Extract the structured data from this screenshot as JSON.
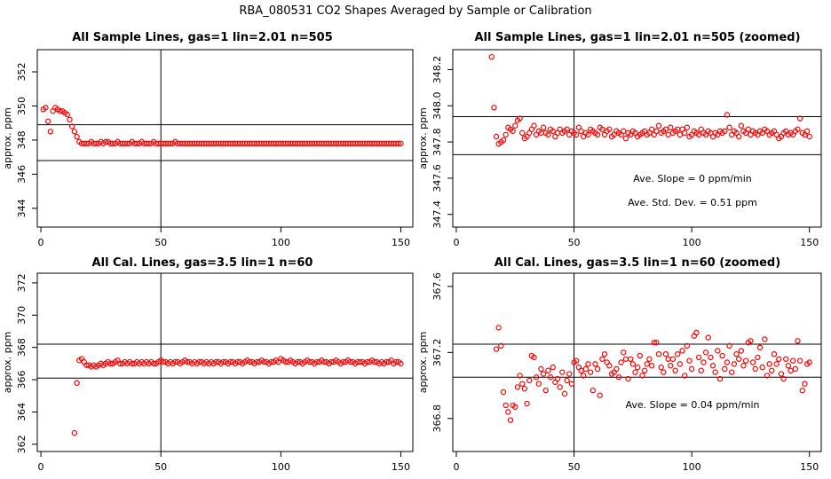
{
  "page": {
    "title": "RBA_080531  CO2 Shapes Averaged by Sample or Calibration"
  },
  "chart_data": [
    {
      "type": "scatter",
      "title": "All Sample Lines, gas=1 lin=2.01 n=505",
      "ylabel": "approx. ppm",
      "xlim": [
        -1.5,
        155
      ],
      "ylim": [
        342.9,
        353.3
      ],
      "xticks": [
        0,
        50,
        100,
        150
      ],
      "yticks": [
        344,
        346,
        348,
        350,
        352
      ],
      "vlines": [
        50
      ],
      "hlines": [
        346.8,
        348.9
      ],
      "point_color": "#ff0000",
      "x": [
        1,
        2,
        3,
        4,
        5,
        6,
        7,
        8,
        9,
        10,
        11,
        12,
        13,
        14,
        15,
        16,
        17,
        18,
        19,
        20,
        21,
        22,
        23,
        24,
        25,
        26,
        27,
        28,
        29,
        30,
        31,
        32,
        33,
        34,
        35,
        36,
        37,
        38,
        39,
        40,
        41,
        42,
        43,
        44,
        45,
        46,
        47,
        48,
        49,
        50,
        51,
        52,
        53,
        54,
        55,
        56,
        57,
        58,
        59,
        60,
        61,
        62,
        63,
        64,
        65,
        66,
        67,
        68,
        69,
        70,
        71,
        72,
        73,
        74,
        75,
        76,
        77,
        78,
        79,
        80,
        81,
        82,
        83,
        84,
        85,
        86,
        87,
        88,
        89,
        90,
        91,
        92,
        93,
        94,
        95,
        96,
        97,
        98,
        99,
        100,
        101,
        102,
        103,
        104,
        105,
        106,
        107,
        108,
        109,
        110,
        111,
        112,
        113,
        114,
        115,
        116,
        117,
        118,
        119,
        120,
        121,
        122,
        123,
        124,
        125,
        126,
        127,
        128,
        129,
        130,
        131,
        132,
        133,
        134,
        135,
        136,
        137,
        138,
        139,
        140,
        141,
        142,
        143,
        144,
        145,
        146,
        147,
        148,
        149,
        150
      ],
      "y": [
        349.8,
        349.9,
        349.1,
        348.5,
        349.7,
        349.9,
        349.8,
        349.7,
        349.7,
        349.6,
        349.5,
        349.2,
        348.8,
        348.5,
        348.2,
        347.9,
        347.8,
        347.8,
        347.8,
        347.8,
        347.9,
        347.8,
        347.8,
        347.8,
        347.9,
        347.8,
        347.9,
        347.9,
        347.8,
        347.8,
        347.8,
        347.9,
        347.8,
        347.8,
        347.8,
        347.8,
        347.8,
        347.9,
        347.8,
        347.8,
        347.8,
        347.9,
        347.8,
        347.8,
        347.8,
        347.8,
        347.9,
        347.8,
        347.8,
        347.8,
        347.8,
        347.8,
        347.8,
        347.8,
        347.8,
        347.9,
        347.8,
        347.8,
        347.8,
        347.8,
        347.8,
        347.8,
        347.8,
        347.8,
        347.8,
        347.8,
        347.8,
        347.8,
        347.8,
        347.8,
        347.8,
        347.8,
        347.8,
        347.8,
        347.8,
        347.8,
        347.8,
        347.8,
        347.8,
        347.8,
        347.8,
        347.8,
        347.8,
        347.8,
        347.8,
        347.8,
        347.8,
        347.8,
        347.8,
        347.8,
        347.8,
        347.8,
        347.8,
        347.8,
        347.8,
        347.8,
        347.8,
        347.8,
        347.8,
        347.8,
        347.8,
        347.8,
        347.8,
        347.8,
        347.8,
        347.8,
        347.8,
        347.8,
        347.8,
        347.8,
        347.8,
        347.8,
        347.8,
        347.8,
        347.8,
        347.8,
        347.8,
        347.8,
        347.8,
        347.8,
        347.8,
        347.8,
        347.8,
        347.8,
        347.8,
        347.8,
        347.8,
        347.8,
        347.8,
        347.8,
        347.8,
        347.8,
        347.8,
        347.8,
        347.8,
        347.8,
        347.8,
        347.8,
        347.8,
        347.8,
        347.8,
        347.8,
        347.8,
        347.8,
        347.8,
        347.8,
        347.8,
        347.8,
        347.8,
        347.8
      ],
      "annotations": []
    },
    {
      "type": "scatter",
      "title": "All Sample Lines, gas=1 lin=2.01 n=505 (zoomed)",
      "ylabel": "approx. ppm",
      "xlim": [
        -1.5,
        155
      ],
      "ylim": [
        347.33,
        348.31
      ],
      "xticks": [
        0,
        50,
        100,
        150
      ],
      "yticks": [
        347.4,
        347.6,
        347.8,
        348.0,
        348.2
      ],
      "vlines": [
        50
      ],
      "hlines": [
        347.73,
        347.94
      ],
      "point_color": "#ff0000",
      "x": [
        15,
        16,
        17,
        18,
        19,
        20,
        21,
        22,
        23,
        24,
        25,
        26,
        27,
        28,
        29,
        30,
        31,
        32,
        33,
        34,
        35,
        36,
        37,
        38,
        39,
        40,
        41,
        42,
        43,
        44,
        45,
        46,
        47,
        48,
        49,
        50,
        51,
        52,
        53,
        54,
        55,
        56,
        57,
        58,
        59,
        60,
        61,
        62,
        63,
        64,
        65,
        66,
        67,
        68,
        69,
        70,
        71,
        72,
        73,
        74,
        75,
        76,
        77,
        78,
        79,
        80,
        81,
        82,
        83,
        84,
        85,
        86,
        87,
        88,
        89,
        90,
        91,
        92,
        93,
        94,
        95,
        96,
        97,
        98,
        99,
        100,
        101,
        102,
        103,
        104,
        105,
        106,
        107,
        108,
        109,
        110,
        111,
        112,
        113,
        114,
        115,
        116,
        117,
        118,
        119,
        120,
        121,
        122,
        123,
        124,
        125,
        126,
        127,
        128,
        129,
        130,
        131,
        132,
        133,
        134,
        135,
        136,
        137,
        138,
        139,
        140,
        141,
        142,
        143,
        144,
        145,
        146,
        147,
        148,
        149,
        150
      ],
      "y": [
        348.27,
        347.99,
        347.83,
        347.79,
        347.8,
        347.81,
        347.84,
        347.88,
        347.87,
        347.86,
        347.89,
        347.92,
        347.93,
        347.85,
        347.82,
        347.83,
        347.85,
        347.87,
        347.89,
        347.84,
        347.86,
        347.85,
        347.88,
        347.85,
        347.84,
        347.87,
        347.86,
        347.83,
        347.85,
        347.87,
        347.85,
        347.86,
        347.87,
        347.84,
        347.86,
        347.85,
        347.84,
        347.88,
        347.86,
        347.83,
        347.85,
        347.84,
        347.87,
        347.86,
        347.85,
        347.84,
        347.88,
        347.87,
        347.84,
        347.86,
        347.87,
        347.83,
        347.84,
        347.86,
        347.85,
        347.84,
        347.86,
        347.82,
        347.85,
        347.84,
        347.86,
        347.85,
        347.83,
        347.84,
        347.85,
        347.86,
        347.84,
        347.85,
        347.87,
        347.84,
        347.86,
        347.89,
        347.85,
        347.86,
        347.87,
        347.84,
        347.88,
        347.85,
        347.86,
        347.87,
        347.84,
        347.87,
        347.85,
        347.88,
        347.83,
        347.84,
        347.86,
        347.85,
        347.84,
        347.87,
        347.85,
        347.84,
        347.86,
        347.85,
        347.83,
        347.85,
        347.84,
        347.86,
        347.85,
        347.86,
        347.95,
        347.88,
        347.84,
        347.86,
        347.85,
        347.83,
        347.89,
        347.86,
        347.85,
        347.87,
        347.84,
        347.86,
        347.85,
        347.84,
        347.86,
        347.85,
        347.87,
        347.86,
        347.84,
        347.85,
        347.86,
        347.84,
        347.82,
        347.83,
        347.85,
        347.86,
        347.84,
        347.85,
        347.84,
        347.86,
        347.87,
        347.93,
        347.85,
        347.84,
        347.86,
        347.83
      ],
      "annotations": [
        "Ave. Slope =  0  ppm/min",
        "Ave. Std. Dev. =  0.51  ppm"
      ]
    },
    {
      "type": "scatter",
      "title": "All Cal. Lines, gas=3.5 lin=1 n=60",
      "ylabel": "approx. ppm",
      "xlim": [
        -1.5,
        155
      ],
      "ylim": [
        361.55,
        372.6
      ],
      "xticks": [
        0,
        50,
        100,
        150
      ],
      "yticks": [
        362,
        364,
        366,
        368,
        370,
        372
      ],
      "vlines": [
        50
      ],
      "hlines": [
        366.1,
        368.2
      ],
      "point_color": "#ff0000",
      "x": [
        14,
        15,
        16,
        17,
        18,
        19,
        20,
        21,
        22,
        23,
        24,
        25,
        26,
        27,
        28,
        29,
        30,
        31,
        32,
        33,
        34,
        35,
        36,
        37,
        38,
        39,
        40,
        41,
        42,
        43,
        44,
        45,
        46,
        47,
        48,
        49,
        50,
        51,
        52,
        53,
        54,
        55,
        56,
        57,
        58,
        59,
        60,
        61,
        62,
        63,
        64,
        65,
        66,
        67,
        68,
        69,
        70,
        71,
        72,
        73,
        74,
        75,
        76,
        77,
        78,
        79,
        80,
        81,
        82,
        83,
        84,
        85,
        86,
        87,
        88,
        89,
        90,
        91,
        92,
        93,
        94,
        95,
        96,
        97,
        98,
        99,
        100,
        101,
        102,
        103,
        104,
        105,
        106,
        107,
        108,
        109,
        110,
        111,
        112,
        113,
        114,
        115,
        116,
        117,
        118,
        119,
        120,
        121,
        122,
        123,
        124,
        125,
        126,
        127,
        128,
        129,
        130,
        131,
        132,
        133,
        134,
        135,
        136,
        137,
        138,
        139,
        140,
        141,
        142,
        143,
        144,
        145,
        146,
        147,
        148,
        149,
        150
      ],
      "y": [
        362.7,
        365.8,
        367.2,
        367.3,
        367.1,
        366.9,
        366.9,
        366.8,
        366.9,
        366.8,
        366.9,
        367.0,
        366.9,
        367.0,
        367.1,
        367.0,
        367.0,
        367.1,
        367.2,
        367.0,
        367.0,
        367.1,
        367.0,
        367.1,
        367.0,
        367.0,
        367.1,
        367.0,
        367.1,
        367.0,
        367.1,
        367.0,
        367.1,
        367.0,
        367.0,
        367.1,
        367.2,
        367.1,
        367.1,
        367.0,
        367.1,
        367.0,
        367.1,
        367.1,
        367.0,
        367.1,
        367.2,
        367.1,
        367.1,
        367.0,
        367.1,
        367.0,
        367.1,
        367.1,
        367.0,
        367.1,
        367.0,
        367.1,
        367.0,
        367.1,
        367.1,
        367.0,
        367.1,
        367.1,
        367.0,
        367.1,
        367.1,
        367.0,
        367.1,
        367.1,
        367.0,
        367.1,
        367.2,
        367.1,
        367.1,
        367.0,
        367.1,
        367.1,
        367.2,
        367.1,
        367.1,
        367.0,
        367.1,
        367.1,
        367.2,
        367.1,
        367.3,
        367.2,
        367.1,
        367.1,
        367.2,
        367.1,
        367.0,
        367.1,
        367.1,
        367.0,
        367.1,
        367.2,
        367.1,
        367.1,
        367.0,
        367.1,
        367.1,
        367.2,
        367.1,
        367.1,
        367.0,
        367.1,
        367.1,
        367.2,
        367.1,
        367.0,
        367.1,
        367.1,
        367.2,
        367.1,
        367.1,
        367.0,
        367.1,
        367.1,
        367.1,
        367.0,
        367.1,
        367.1,
        367.2,
        367.1,
        367.1,
        367.0,
        367.1,
        367.0,
        367.1,
        367.1,
        367.2,
        367.0,
        367.1,
        367.1,
        367.0
      ],
      "annotations": []
    },
    {
      "type": "scatter",
      "title": "All Cal. Lines, gas=3.5 lin=1 n=60 (zoomed)",
      "ylabel": "approx. ppm",
      "xlim": [
        -1.5,
        155
      ],
      "ylim": [
        366.6,
        367.68
      ],
      "xticks": [
        0,
        50,
        100,
        150
      ],
      "yticks": [
        366.8,
        367.2,
        367.6
      ],
      "vlines": [
        50
      ],
      "hlines": [
        367.05,
        367.25
      ],
      "point_color": "#ff0000",
      "x": [
        17,
        18,
        19,
        20,
        21,
        22,
        23,
        24,
        25,
        26,
        27,
        28,
        29,
        30,
        31,
        32,
        33,
        34,
        35,
        36,
        37,
        38,
        39,
        40,
        41,
        42,
        43,
        44,
        45,
        46,
        47,
        48,
        49,
        50,
        51,
        52,
        53,
        54,
        55,
        56,
        57,
        58,
        59,
        60,
        61,
        62,
        63,
        64,
        65,
        66,
        67,
        68,
        69,
        70,
        71,
        72,
        73,
        74,
        75,
        76,
        77,
        78,
        79,
        80,
        81,
        82,
        83,
        84,
        85,
        86,
        87,
        88,
        89,
        90,
        91,
        92,
        93,
        94,
        95,
        96,
        97,
        98,
        99,
        100,
        101,
        102,
        103,
        104,
        105,
        106,
        107,
        108,
        109,
        110,
        111,
        112,
        113,
        114,
        115,
        116,
        117,
        118,
        119,
        120,
        121,
        122,
        123,
        124,
        125,
        126,
        127,
        128,
        129,
        130,
        131,
        132,
        133,
        134,
        135,
        136,
        137,
        138,
        139,
        140,
        141,
        142,
        143,
        144,
        145,
        146,
        147,
        148,
        149,
        150
      ],
      "y": [
        367.22,
        367.35,
        367.24,
        366.96,
        366.88,
        366.84,
        366.79,
        366.88,
        366.87,
        366.99,
        367.06,
        367.01,
        366.98,
        366.89,
        367.03,
        367.18,
        367.17,
        367.05,
        367.01,
        367.1,
        367.07,
        366.97,
        367.09,
        367.05,
        367.11,
        367.02,
        367.04,
        366.99,
        367.08,
        366.95,
        367.03,
        367.07,
        367.01,
        367.14,
        367.15,
        367.11,
        367.09,
        367.06,
        367.1,
        367.13,
        367.08,
        366.97,
        367.13,
        367.1,
        366.94,
        367.16,
        367.19,
        367.14,
        367.12,
        367.07,
        367.08,
        367.1,
        367.05,
        367.14,
        367.2,
        367.16,
        367.04,
        367.16,
        367.13,
        367.08,
        367.11,
        367.18,
        367.06,
        367.09,
        367.13,
        367.16,
        367.12,
        367.26,
        367.26,
        367.19,
        367.11,
        367.08,
        367.19,
        367.16,
        367.12,
        367.16,
        367.09,
        367.19,
        367.13,
        367.21,
        367.06,
        367.24,
        367.15,
        367.1,
        367.3,
        367.32,
        367.17,
        367.09,
        367.14,
        367.2,
        367.29,
        367.17,
        367.12,
        367.08,
        367.21,
        367.04,
        367.18,
        367.1,
        367.14,
        367.24,
        367.08,
        367.13,
        367.19,
        367.16,
        367.21,
        367.12,
        367.15,
        367.26,
        367.27,
        367.14,
        367.1,
        367.17,
        367.23,
        367.11,
        367.28,
        367.06,
        367.13,
        367.09,
        367.19,
        367.13,
        367.16,
        367.07,
        367.04,
        367.16,
        367.12,
        367.09,
        367.15,
        367.1,
        367.27,
        367.15,
        366.97,
        367.01,
        367.13,
        367.14
      ],
      "annotations": [
        "Ave. Slope =  0.04  ppm/min"
      ]
    }
  ]
}
